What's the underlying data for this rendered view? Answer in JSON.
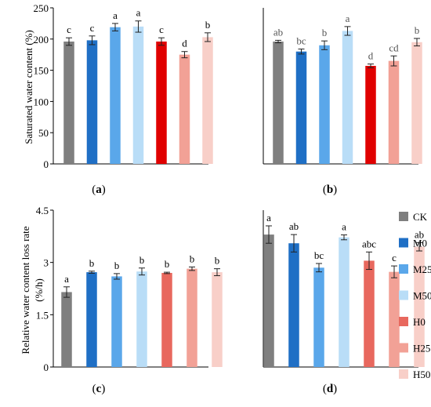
{
  "colors": {
    "CK": "#7f7f7f",
    "M0": "#1f6fc5",
    "M25": "#5aa7ea",
    "M50": "#b9ddf7",
    "H0": "#e8685e",
    "H25": "#f2a196",
    "H50": "#f8cfc8",
    "H0_sat": "#e00000",
    "error": "#222222"
  },
  "legend": {
    "entries": [
      "CK",
      "M0",
      "M25",
      "M50",
      "H0",
      "H25",
      "H50"
    ]
  },
  "chart_data": [
    {
      "panel_label": "(a)",
      "type": "bar",
      "ylabel": "Saturated water content (%)",
      "ylim": [
        0,
        250
      ],
      "yticks": [
        "0",
        "50",
        "100",
        "150",
        "200",
        "250"
      ],
      "categories": [
        "CK",
        "M0",
        "M25",
        "M50",
        "H0",
        "H25",
        "H50"
      ],
      "values": [
        196,
        198,
        219,
        220,
        196,
        175,
        203
      ],
      "errors": [
        6,
        7,
        6,
        9,
        6,
        5,
        7
      ],
      "letters": [
        "c",
        "c",
        "a",
        "a",
        "c",
        "d",
        "b"
      ],
      "bar_colors": [
        "CK",
        "M0",
        "M25",
        "M50",
        "H0_sat",
        "H25",
        "H50"
      ]
    },
    {
      "panel_label": "(b)",
      "type": "bar",
      "ylim": [
        0,
        250
      ],
      "categories": [
        "CK",
        "M0",
        "M25",
        "M50",
        "H0",
        "H25",
        "H50"
      ],
      "values": [
        196,
        180,
        190,
        213,
        157,
        165,
        195
      ],
      "errors": [
        2,
        4,
        7,
        7,
        3,
        8,
        6
      ],
      "letters": [
        "ab",
        "bc",
        "b",
        "a",
        "d",
        "cd",
        "b"
      ],
      "bar_colors": [
        "CK",
        "M0",
        "M25",
        "M50",
        "H0_sat",
        "H25",
        "H50"
      ]
    },
    {
      "panel_label": "(c)",
      "type": "bar",
      "ylabel": "Relative water content loss rate (%/h)",
      "ylim": [
        0,
        4.5
      ],
      "yticks": [
        "0",
        "1.5",
        "3",
        "4.5"
      ],
      "categories": [
        "CK",
        "M0",
        "M25",
        "M50",
        "H0",
        "H25",
        "H50"
      ],
      "values": [
        2.15,
        2.72,
        2.6,
        2.74,
        2.7,
        2.82,
        2.72
      ],
      "errors": [
        0.15,
        0.03,
        0.08,
        0.1,
        0.02,
        0.05,
        0.1
      ],
      "letters": [
        "a",
        "b",
        "b",
        "b",
        "b",
        "b",
        "b"
      ],
      "bar_colors": [
        "CK",
        "M0",
        "M25",
        "M50",
        "H0",
        "H25",
        "H50"
      ]
    },
    {
      "panel_label": "(d)",
      "type": "bar",
      "ylim": [
        0,
        4.5
      ],
      "categories": [
        "CK",
        "M0",
        "M25",
        "M50",
        "H0",
        "H25",
        "H50"
      ],
      "values": [
        3.8,
        3.55,
        2.85,
        3.72,
        3.05,
        2.73,
        3.45
      ],
      "errors": [
        0.25,
        0.25,
        0.12,
        0.07,
        0.25,
        0.17,
        0.12
      ],
      "letters": [
        "a",
        "ab",
        "bc",
        "a",
        "abc",
        "c",
        "ab"
      ],
      "bar_colors": [
        "CK",
        "M0",
        "M25",
        "M50",
        "H0",
        "H25",
        "H50"
      ]
    }
  ]
}
